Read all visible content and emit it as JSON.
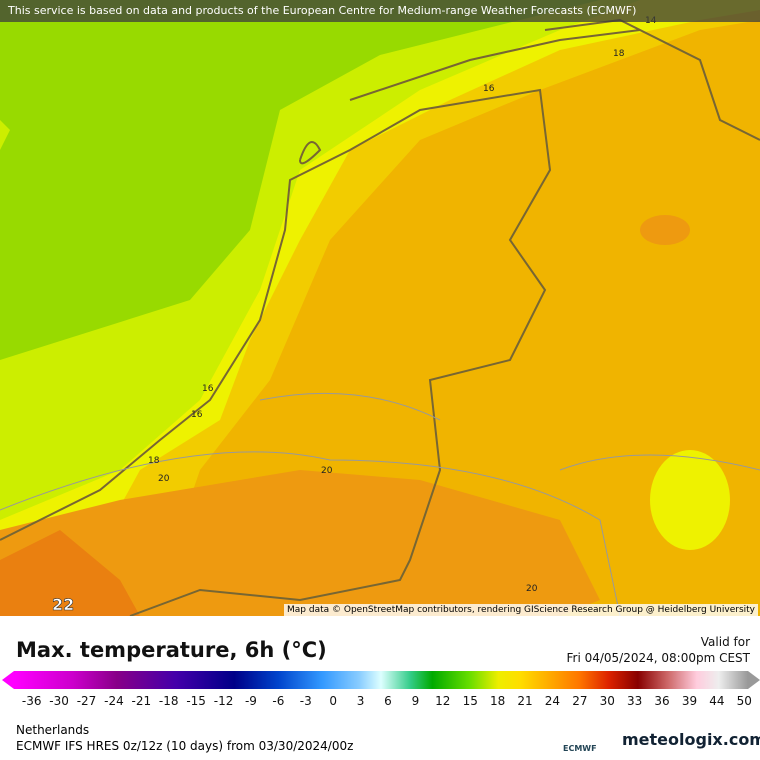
{
  "banner": "This service is based on data and products of the European Centre for Medium-range Weather Forecasts (ECMWF)",
  "contour_labels": [
    "14",
    "18",
    "16",
    "16",
    "16",
    "18",
    "20",
    "20",
    "20",
    "22"
  ],
  "attribution": "Map data © OpenStreetMap contributors, rendering GIScience Research Group @ Heidelberg University",
  "legend": {
    "title": "Max. temperature, 6h (°C)",
    "valid_label": "Valid for",
    "valid_time": "Fri 04/05/2024, 08:00pm CEST",
    "scale_labels": [
      -36,
      -30,
      -27,
      -24,
      -21,
      -18,
      -15,
      -12,
      -9,
      -6,
      -3,
      0,
      3,
      6,
      9,
      12,
      15,
      18,
      21,
      24,
      27,
      30,
      33,
      36,
      39,
      44,
      50
    ]
  },
  "footer": {
    "region": "Netherlands",
    "model": "ECMWF IFS HRES 0z/12z (10 days) from  03/30/2024/00z",
    "ecmwf_logo": "ECMWF",
    "brand": "meteologix.com"
  }
}
